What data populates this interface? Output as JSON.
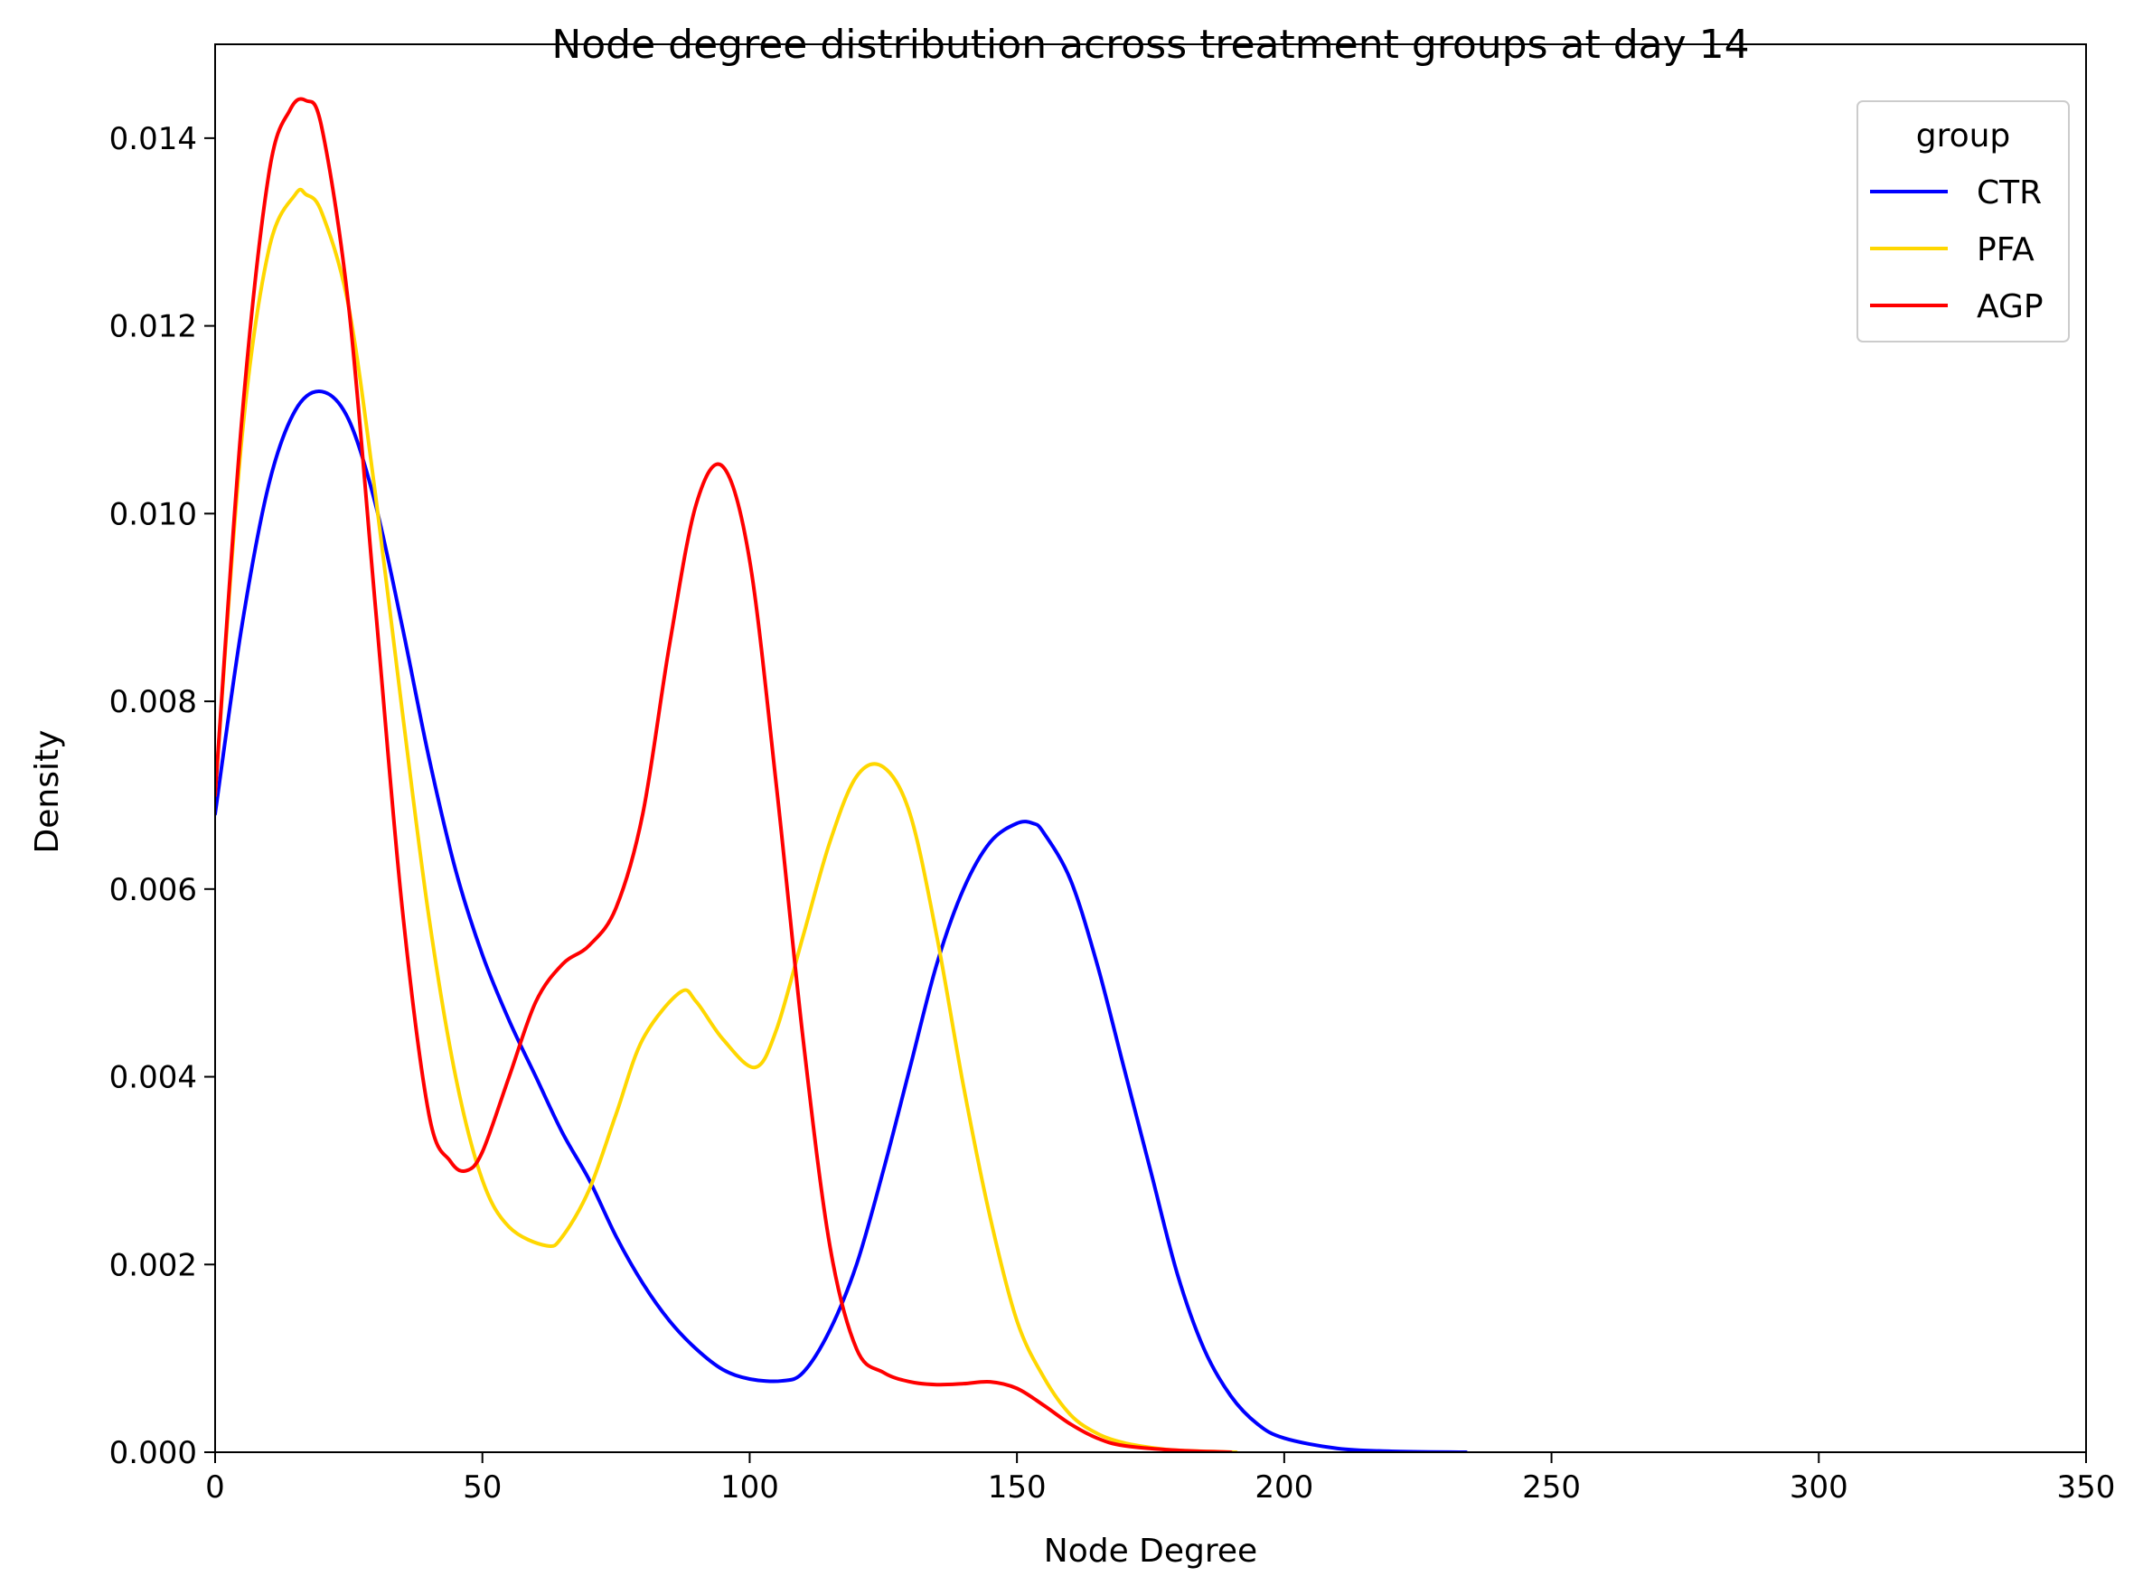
{
  "chart_data": {
    "type": "line",
    "title": "Node degree distribution across treatment groups at day 14",
    "xlabel": "Node Degree",
    "ylabel": "Density",
    "xlim": [
      0,
      350
    ],
    "ylim": [
      0,
      0.015
    ],
    "xticks": [
      0,
      50,
      100,
      150,
      200,
      250,
      300,
      350
    ],
    "xtick_labels": [
      "0",
      "50",
      "100",
      "150",
      "200",
      "250",
      "300",
      "350"
    ],
    "yticks": [
      0,
      0.002,
      0.004,
      0.006,
      0.008,
      0.01,
      0.012,
      0.014
    ],
    "ytick_labels": [
      "0.000",
      "0.002",
      "0.004",
      "0.006",
      "0.008",
      "0.010",
      "0.012",
      "0.014"
    ],
    "grid": false,
    "legend": {
      "title": "group",
      "position": "top-right"
    },
    "series": [
      {
        "name": "CTR",
        "color": "#0000ff",
        "x": [
          0,
          5,
          10,
          15,
          20,
          25,
          30,
          35,
          40,
          45,
          50,
          55,
          60,
          65,
          70,
          75,
          80,
          85,
          90,
          95,
          100,
          106,
          110,
          115,
          120,
          125,
          130,
          135,
          140,
          145,
          150,
          153,
          155,
          160,
          165,
          170,
          175,
          180,
          185,
          190,
          195,
          200,
          210,
          220,
          234
        ],
        "y": [
          0.0068,
          0.0088,
          0.0103,
          0.0111,
          0.0113,
          0.011,
          0.0101,
          0.0088,
          0.0074,
          0.0062,
          0.0053,
          0.0046,
          0.004,
          0.0034,
          0.0029,
          0.0023,
          0.0018,
          0.0014,
          0.0011,
          0.00088,
          0.00078,
          0.00076,
          0.00085,
          0.0013,
          0.002,
          0.003,
          0.0041,
          0.0052,
          0.006,
          0.0065,
          0.0067,
          0.0067,
          0.0066,
          0.0061,
          0.0052,
          0.0041,
          0.003,
          0.0019,
          0.0011,
          0.0006,
          0.0003,
          0.00015,
          4e-05,
          1e-05,
          0.0
        ]
      },
      {
        "name": "PFA",
        "color": "#ffd700",
        "x": [
          0,
          5,
          10,
          15,
          17,
          20,
          25,
          30,
          35,
          40,
          45,
          50,
          55,
          62,
          65,
          70,
          75,
          80,
          87,
          90,
          95,
          101,
          105,
          110,
          115,
          120,
          125,
          130,
          135,
          140,
          145,
          150,
          155,
          160,
          165,
          170,
          175,
          180,
          191
        ],
        "y": [
          0.007,
          0.0108,
          0.0128,
          0.0134,
          0.0134,
          0.0132,
          0.0122,
          0.0102,
          0.0079,
          0.0057,
          0.004,
          0.0029,
          0.0024,
          0.0022,
          0.0023,
          0.0028,
          0.0036,
          0.0044,
          0.0049,
          0.0048,
          0.0044,
          0.0041,
          0.0045,
          0.0055,
          0.0065,
          0.0072,
          0.0073,
          0.0068,
          0.0055,
          0.0039,
          0.0025,
          0.0014,
          0.0008,
          0.0004,
          0.0002,
          0.0001,
          5e-05,
          2e-05,
          0.0
        ]
      },
      {
        "name": "AGP",
        "color": "#ff0000",
        "x": [
          0,
          5,
          10,
          14,
          17,
          20,
          25,
          30,
          35,
          40,
          44,
          47,
          50,
          55,
          60,
          65,
          70,
          75,
          80,
          85,
          90,
          95,
          100,
          105,
          110,
          115,
          120,
          125,
          130,
          135,
          140,
          145,
          150,
          155,
          160,
          165,
          170,
          180,
          190
        ],
        "y": [
          0.007,
          0.011,
          0.0136,
          0.0143,
          0.0144,
          0.0141,
          0.0122,
          0.009,
          0.0058,
          0.0036,
          0.0031,
          0.003,
          0.0032,
          0.004,
          0.0048,
          0.0052,
          0.0054,
          0.0058,
          0.0068,
          0.0086,
          0.0101,
          0.0105,
          0.0095,
          0.0071,
          0.0044,
          0.0022,
          0.0011,
          0.00085,
          0.00075,
          0.00072,
          0.00073,
          0.00075,
          0.00068,
          0.0005,
          0.0003,
          0.00015,
          7e-05,
          2e-05,
          0.0
        ]
      }
    ]
  }
}
